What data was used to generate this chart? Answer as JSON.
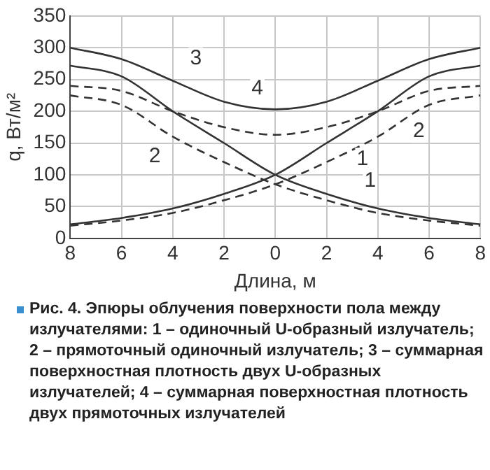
{
  "chart_data": {
    "type": "line",
    "xlabel": "Длина, м",
    "ylabel": "q, Вт/м²",
    "x": [
      -8,
      -6,
      -4,
      -2,
      0,
      2,
      4,
      6,
      8
    ],
    "xlim": [
      -8,
      8
    ],
    "xticks": [
      {
        "value": -8,
        "label": "8"
      },
      {
        "value": -6,
        "label": "6"
      },
      {
        "value": -4,
        "label": "4"
      },
      {
        "value": -2,
        "label": "2"
      },
      0,
      2,
      4,
      6,
      8
    ],
    "ylim": [
      0,
      350
    ],
    "yticks": [
      0,
      50,
      100,
      150,
      200,
      250,
      300,
      350
    ],
    "grid": true,
    "legend": false,
    "marker": "none",
    "series": [
      {
        "color": "#333333",
        "line_style": "solid",
        "values": [
          272,
          255,
          200,
          150,
          100,
          70,
          47,
          32,
          22
        ]
      },
      {
        "color": "#333333",
        "line_style": "solid",
        "values": [
          22,
          32,
          47,
          70,
          100,
          150,
          200,
          255,
          272
        ]
      },
      {
        "color": "#333333",
        "line_style": "dashed",
        "values": [
          225,
          210,
          160,
          120,
          85,
          60,
          40,
          28,
          20
        ]
      },
      {
        "color": "#333333",
        "line_style": "dashed",
        "values": [
          20,
          28,
          40,
          60,
          85,
          120,
          160,
          210,
          225
        ]
      },
      {
        "color": "#333333",
        "line_style": "solid",
        "values": [
          300,
          282,
          248,
          215,
          203,
          215,
          248,
          282,
          300
        ]
      },
      {
        "color": "#333333",
        "line_style": "dashed",
        "values": [
          240,
          232,
          200,
          175,
          163,
          175,
          200,
          232,
          240
        ]
      }
    ],
    "annotations": [
      {
        "text": "3",
        "x": -3.1,
        "y": 283
      },
      {
        "text": "4",
        "x": -0.7,
        "y": 236
      },
      {
        "text": "2",
        "x": -4.7,
        "y": 129
      },
      {
        "text": "2",
        "x": 5.6,
        "y": 168
      },
      {
        "text": "1",
        "x": 3.4,
        "y": 125
      },
      {
        "text": "1",
        "x": 3.7,
        "y": 90
      },
      "Рис. 4. Эпюры облучения поверхности пола между излучателями: 1 – одиночный U-образный излучатель; 2 – прямоточный одиночный излучатель; 3 – суммарная поверхностная плотность двух U-образных излучателей; 4 – суммарная поверхностная плотность двух прямоточных излучателей"
    ]
  }
}
